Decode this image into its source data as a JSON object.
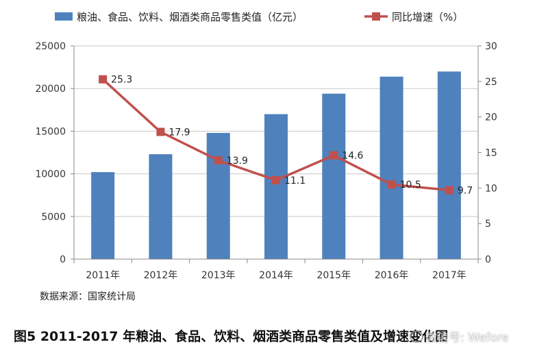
{
  "chart_data": {
    "type": "bar+line",
    "categories": [
      "2011年",
      "2012年",
      "2013年",
      "2014年",
      "2015年",
      "2016年",
      "2017年"
    ],
    "series": [
      {
        "name": "粮油、食品、饮料、烟酒类商品零售类值（亿元）",
        "type": "bar",
        "axis": "left",
        "values": [
          10200,
          12300,
          14800,
          17000,
          19400,
          21400,
          22000
        ],
        "color": "#4f81bd"
      },
      {
        "name": "同比增速（%）",
        "type": "line",
        "axis": "right",
        "values": [
          25.3,
          17.9,
          13.9,
          11.1,
          14.6,
          10.5,
          9.7
        ],
        "labels": [
          "25.3",
          "17.9",
          "13.9",
          "11.1",
          "14.6",
          "10.5",
          "9.7"
        ],
        "color": "#c0504d"
      }
    ],
    "y_left": {
      "min": 0,
      "max": 25000,
      "ticks": [
        "0",
        "5000",
        "10000",
        "15000",
        "20000",
        "25000"
      ]
    },
    "y_right": {
      "min": 0,
      "max": 30,
      "ticks": [
        "0",
        "5",
        "10",
        "15",
        "20",
        "25",
        "30"
      ]
    },
    "grid": true,
    "legend_position": "top"
  },
  "source_text": "数据来源：国家统计局",
  "caption": "图5  2011-2017 年粮油、食品、饮料、烟酒类商品零售类值及增速变化图",
  "watermark": "微信号: Wefore"
}
